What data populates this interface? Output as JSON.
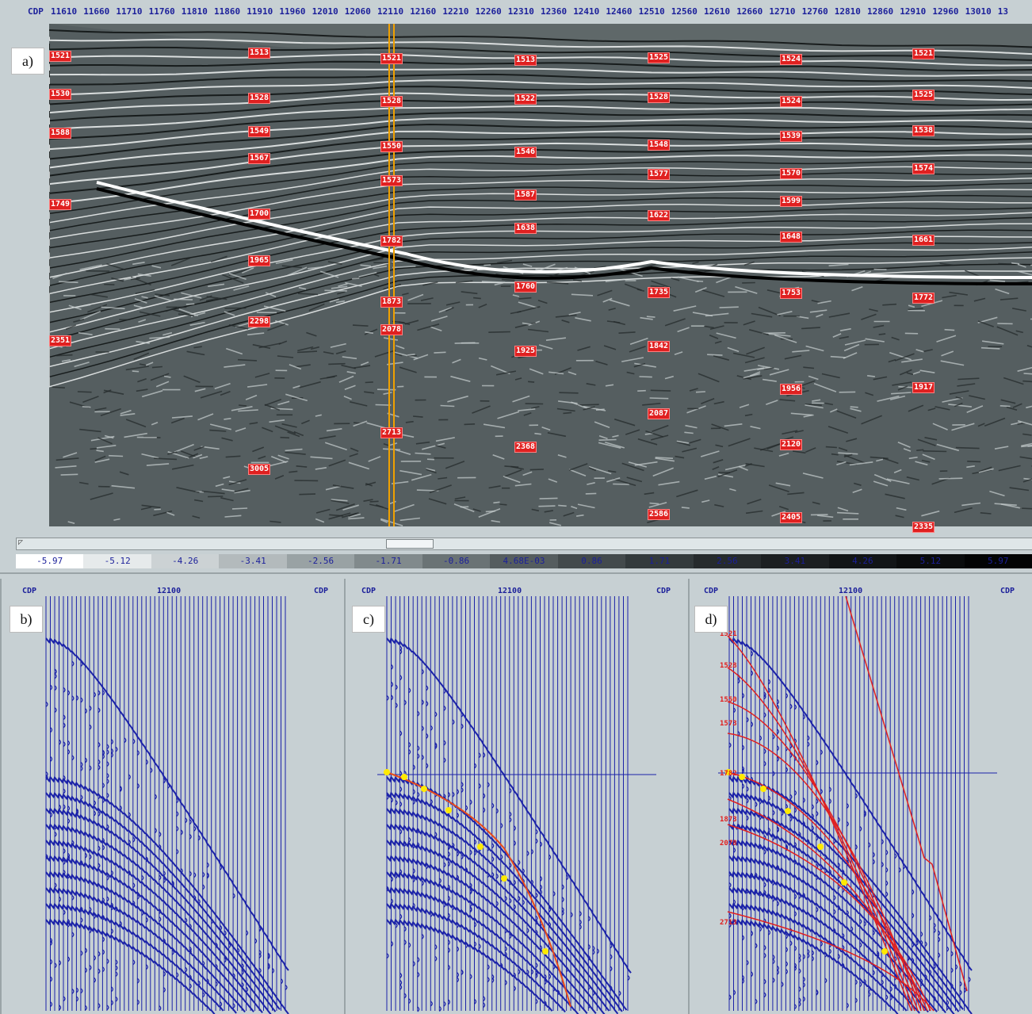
{
  "axis": {
    "title": "CDP",
    "ticks": [
      "11610",
      "11660",
      "11710",
      "11760",
      "11810",
      "11860",
      "11910",
      "11960",
      "12010",
      "12060",
      "12110",
      "12160",
      "12210",
      "12260",
      "12310",
      "12360",
      "12410",
      "12460",
      "12510",
      "12560",
      "12610",
      "12660",
      "12710",
      "12760",
      "12810",
      "12860",
      "12910",
      "12960",
      "13010",
      "13"
    ]
  },
  "panels": {
    "a": "a)",
    "b": "b)",
    "c": "c)",
    "d": "d)"
  },
  "velocities": [
    {
      "text": "1521"
    },
    {
      "text": "1530"
    },
    {
      "text": "1588"
    },
    {
      "text": "1749"
    },
    {
      "text": "2351"
    },
    {
      "text": "1513"
    },
    {
      "text": "1528"
    },
    {
      "text": "1549"
    },
    {
      "text": "1567"
    },
    {
      "text": "1700"
    },
    {
      "text": "1965"
    },
    {
      "text": "2298"
    },
    {
      "text": "3005"
    },
    {
      "text": "1521"
    },
    {
      "text": "1528"
    },
    {
      "text": "1550"
    },
    {
      "text": "1573"
    },
    {
      "text": "1782"
    },
    {
      "text": "1873"
    },
    {
      "text": "2078"
    },
    {
      "text": "2713"
    },
    {
      "text": "1513"
    },
    {
      "text": "1522"
    },
    {
      "text": "1546"
    },
    {
      "text": "1587"
    },
    {
      "text": "1638"
    },
    {
      "text": "1760"
    },
    {
      "text": "1925"
    },
    {
      "text": "2368"
    },
    {
      "text": "1525"
    },
    {
      "text": "1528"
    },
    {
      "text": "1548"
    },
    {
      "text": "1577"
    },
    {
      "text": "1622"
    },
    {
      "text": "1735"
    },
    {
      "text": "1842"
    },
    {
      "text": "2087"
    },
    {
      "text": "2586"
    },
    {
      "text": "1524"
    },
    {
      "text": "1524"
    },
    {
      "text": "1539"
    },
    {
      "text": "1570"
    },
    {
      "text": "1599"
    },
    {
      "text": "1648"
    },
    {
      "text": "1753"
    },
    {
      "text": "1956"
    },
    {
      "text": "2120"
    },
    {
      "text": "2405"
    },
    {
      "text": "1521"
    },
    {
      "text": "1525"
    },
    {
      "text": "1538"
    },
    {
      "text": "1574"
    },
    {
      "text": "1661"
    },
    {
      "text": "1772"
    },
    {
      "text": "1917"
    },
    {
      "text": "2335"
    }
  ],
  "colorbar": {
    "labels": [
      "-5.97",
      "-5.12",
      "-4.26",
      "-3.41",
      "-2.56",
      "-1.71",
      "-0.86",
      "4.68E-03",
      "0.86",
      "1.71",
      "2.56",
      "3.41",
      "4.26",
      "5.12",
      "5.97"
    ],
    "colors": [
      "#ffffff",
      "#e6eaeb",
      "#ccd2d4",
      "#b3babc",
      "#99a2a4",
      "#818a8c",
      "#6a7375",
      "#555d5f",
      "#434a4c",
      "#333a3c",
      "#262b2d",
      "#1b1f21",
      "#121517",
      "#0a0c0d",
      "#030404"
    ]
  },
  "gathers": {
    "cdp_left": "CDP",
    "cdp_center": "12100",
    "cdp_right": "CDP",
    "d_labels": [
      "1521",
      "1528",
      "1550",
      "1573",
      "1782",
      "1873",
      "2078",
      "2713"
    ]
  }
}
